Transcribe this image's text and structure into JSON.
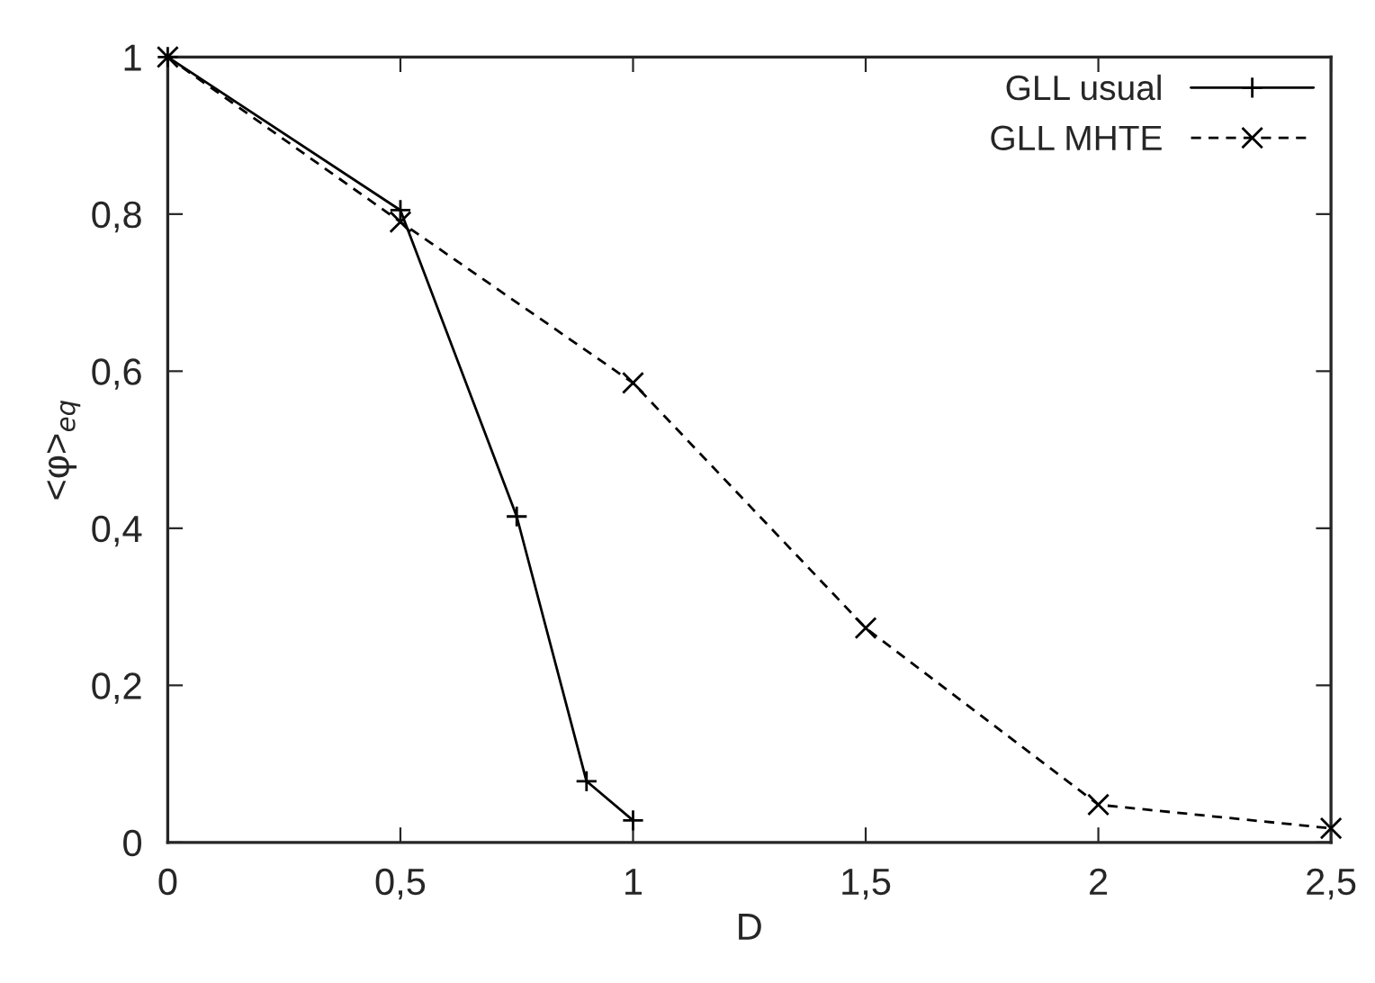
{
  "chart_data": {
    "type": "line",
    "xlabel": "D",
    "ylabel": "<φ>$_{eq}$",
    "xlim": [
      0,
      2.5
    ],
    "ylim": [
      0,
      1
    ],
    "xticks": [
      0,
      {
        "value": 0.5,
        "label": "0,5"
      },
      1,
      {
        "value": 1.5,
        "label": "1,5"
      },
      2,
      {
        "value": 2.5,
        "label": "2,5"
      }
    ],
    "yticks": [
      0,
      {
        "value": 0.2,
        "label": "0,2"
      },
      {
        "value": 0.4,
        "label": "0,4"
      },
      {
        "value": 0.6,
        "label": "0,6"
      },
      {
        "value": 0.8,
        "label": "0,8"
      },
      1
    ],
    "grid": false,
    "legend": "top right",
    "series": [
      {
        "name": "GLL usual",
        "color": "#000000",
        "marker": "plus",
        "line_style": "solid",
        "x": [
          0,
          0.5,
          0.75,
          0.9,
          1
        ],
        "values": [
          1,
          0.805,
          0.415,
          0.078,
          0.028
        ]
      },
      {
        "name": "GLL MHTE",
        "color": "#000000",
        "marker": "cross",
        "line_style": "dashed",
        "x": [
          0,
          0.5,
          1,
          1.5,
          2,
          2.5
        ],
        "values": [
          1,
          0.79,
          0.585,
          0.273,
          0.048,
          0.018
        ]
      }
    ]
  }
}
